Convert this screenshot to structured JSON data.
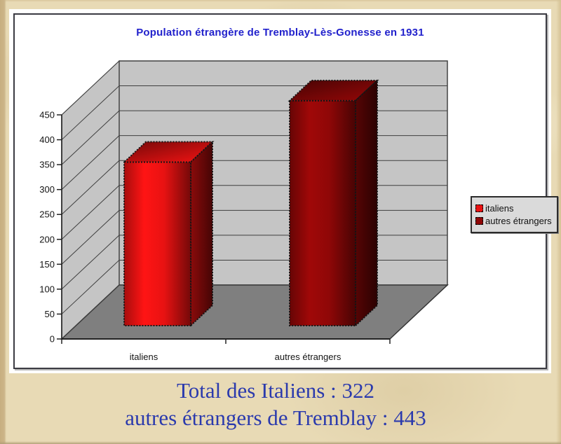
{
  "page": {
    "background_color": "#e8dab5"
  },
  "caption": {
    "line1": "Total des Italiens : 322",
    "line2": "autres étrangers de Tremblay : 443",
    "color": "#2b3aad"
  },
  "chart_data": {
    "type": "bar",
    "style": "3d-column",
    "title": "Population étrangère de  Tremblay-Lès-Gonesse en 1931",
    "title_color": "#2121cc",
    "categories": [
      "italiens",
      "autres étrangers"
    ],
    "series": [
      {
        "name": "italiens",
        "value": 322,
        "color": "#e81212"
      },
      {
        "name": "autres étrangers",
        "value": 443,
        "color": "#8f0707"
      }
    ],
    "ylim": [
      0,
      450
    ],
    "ytick_step": 50,
    "yticks": [
      0,
      50,
      100,
      150,
      200,
      250,
      300,
      350,
      400,
      450
    ],
    "grid": true,
    "legend_position": "right",
    "wall_color": "#c5c5c5",
    "floor_color": "#7f7f7f",
    "gridline_color": "#3f3f3f",
    "axis_text_color": "#141414"
  }
}
